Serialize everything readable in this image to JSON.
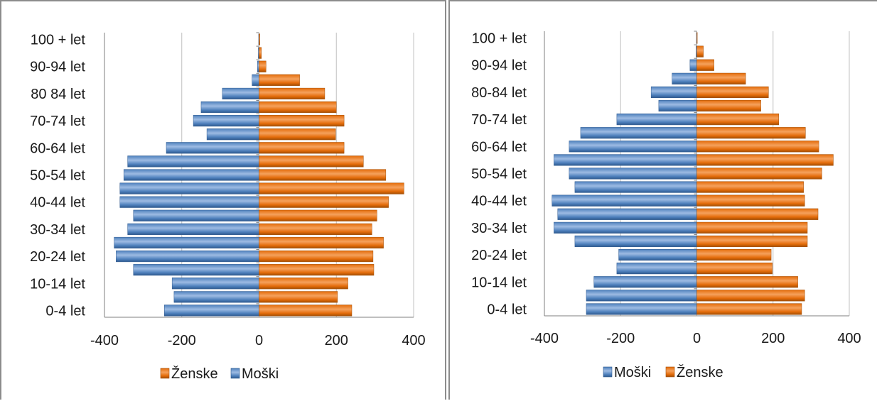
{
  "colors": {
    "male": "#4f81bd",
    "male_light": "#9dbbe3",
    "male_dark": "#2f5a8f",
    "female": "#e46c0a",
    "female_light": "#f5a15c",
    "female_dark": "#a34e05",
    "grid": "#c0c0c0",
    "axis": "#7f7f7f"
  },
  "chart_data": [
    {
      "type": "bar",
      "orientation": "horizontal",
      "grid": true,
      "xlim": [
        -400,
        400
      ],
      "xticks": [
        "-400",
        "-200",
        "0",
        "200",
        "400"
      ],
      "legend_position": "bottom",
      "legend": [
        "Ženske",
        "Moški"
      ],
      "category_labels": [
        "100 + let",
        "90-94 let",
        "80 84 let",
        "70-74 let",
        "60-64 let",
        "50-54 let",
        "40-44 let",
        "30-34 let",
        "20-24 let",
        "10-14 let",
        "0-4 let"
      ],
      "categories_count": 21,
      "series": [
        {
          "name": "Moški",
          "color_key": "male",
          "values": [
            -245,
            -220,
            -225,
            -325,
            -370,
            -375,
            -340,
            -325,
            -360,
            -360,
            -350,
            -340,
            -240,
            -135,
            -170,
            -150,
            -95,
            -18,
            -4,
            -2,
            -1
          ]
        },
        {
          "name": "Ženske",
          "color_key": "female",
          "values": [
            240,
            203,
            230,
            297,
            295,
            322,
            292,
            305,
            335,
            375,
            328,
            270,
            220,
            198,
            220,
            200,
            170,
            105,
            18,
            6,
            2
          ]
        }
      ]
    },
    {
      "type": "bar",
      "orientation": "horizontal",
      "grid": true,
      "xlim": [
        -400,
        400
      ],
      "xticks": [
        "-400",
        "-200",
        "0",
        "200",
        "400"
      ],
      "legend_position": "bottom",
      "legend": [
        "Moški",
        "Ženske"
      ],
      "category_labels": [
        "100 + let",
        "90-94 let",
        "80-84 let",
        "70-74 let",
        "60-64 let",
        "50-54 let",
        "40-44 let",
        "30-34 let",
        "20-24 let",
        "10-14 let",
        "0-4 let"
      ],
      "categories_count": 21,
      "series": [
        {
          "name": "Moški",
          "color_key": "male",
          "values": [
            -290,
            -290,
            -270,
            -210,
            -205,
            -320,
            -375,
            -365,
            -380,
            -320,
            -335,
            -375,
            -335,
            -305,
            -210,
            -100,
            -120,
            -65,
            -18,
            -2,
            -1
          ]
        },
        {
          "name": "Ženske",
          "color_key": "female",
          "values": [
            275,
            283,
            265,
            198,
            195,
            290,
            290,
            318,
            283,
            280,
            328,
            358,
            320,
            285,
            215,
            168,
            188,
            128,
            45,
            17,
            1
          ]
        }
      ]
    }
  ]
}
